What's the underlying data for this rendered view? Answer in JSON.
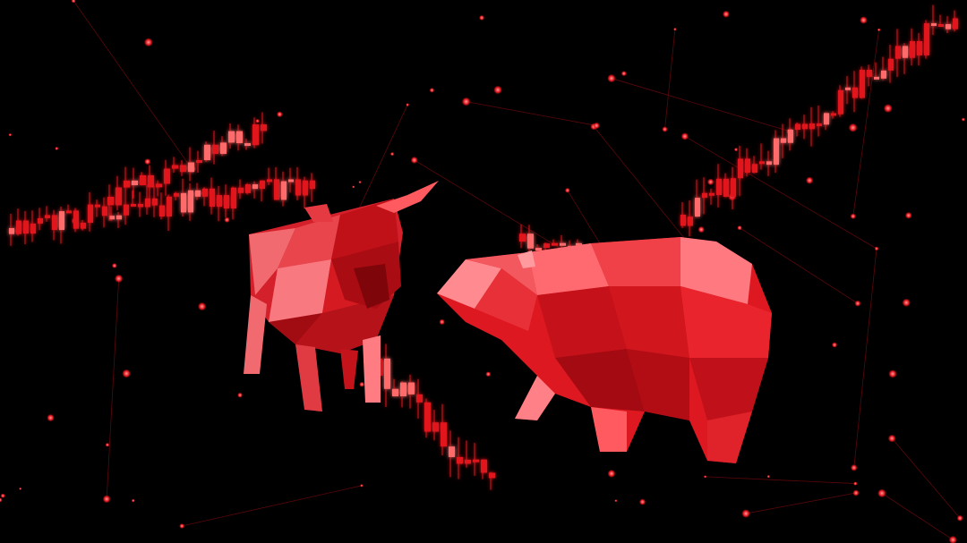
{
  "scene": {
    "subject": "bull-vs-bear",
    "palette": {
      "background": "#000000",
      "accent": "#e0141b",
      "highlight": "#ff6a6a",
      "shadow": "#6a0306"
    },
    "figures": [
      "bull-figure",
      "bear-figure"
    ],
    "overlay": [
      "candlestick-chart",
      "network-lines",
      "glowing-nodes"
    ]
  }
}
